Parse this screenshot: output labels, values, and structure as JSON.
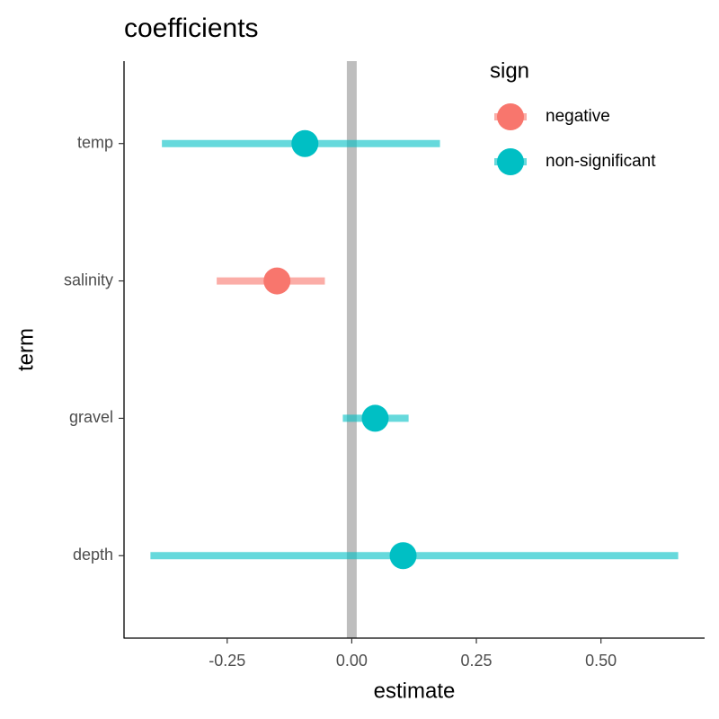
{
  "chart_data": {
    "type": "coefficient",
    "title": "coefficients",
    "x_label": "estimate",
    "y_label": "term",
    "categories": [
      "temp",
      "salinity",
      "gravel",
      "depth"
    ],
    "series": [
      {
        "name": "negative",
        "color": "#F8766D",
        "values": [
          null,
          -0.15,
          null,
          null
        ],
        "low": [
          null,
          -0.271,
          null,
          null
        ],
        "high": [
          null,
          -0.054,
          null,
          null
        ]
      },
      {
        "name": "non-significant",
        "color": "#00BFC4",
        "values": [
          -0.094,
          null,
          0.047,
          0.103
        ],
        "low": [
          -0.381,
          null,
          -0.018,
          -0.404
        ],
        "high": [
          0.177,
          null,
          0.114,
          0.655
        ]
      }
    ],
    "reference_line": 0,
    "legend_title": "sign",
    "legend_position": "top-right",
    "xlim": [
      -0.457,
      0.708
    ],
    "xticks": [
      -0.25,
      {
        "value": 0,
        "label": "0.00"
      },
      0.25,
      {
        "value": 0.5,
        "label": "0.50"
      }
    ]
  }
}
